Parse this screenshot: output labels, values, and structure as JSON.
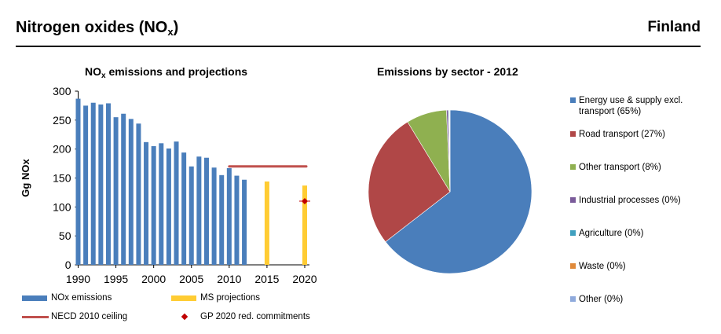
{
  "header": {
    "title": "Nitrogen oxides (NO",
    "title_sub": "x",
    "title_end": ")",
    "country": "Finland"
  },
  "chart_data": [
    {
      "type": "bar",
      "title": "NO",
      "title_sub": "x",
      "title_rest": " emissions and projections",
      "ylabel": "Gg NOx",
      "ylim": [
        0,
        300
      ],
      "yticks": [
        0,
        50,
        100,
        150,
        200,
        250,
        300
      ],
      "xlim": [
        1990,
        2020
      ],
      "xticks": [
        1990,
        1995,
        2000,
        2005,
        2010,
        2015,
        2020
      ],
      "series": [
        {
          "name": "NOx emissions",
          "color": "#4a7ebb",
          "x": [
            1990,
            1991,
            1992,
            1993,
            1994,
            1995,
            1996,
            1997,
            1998,
            1999,
            2000,
            2001,
            2002,
            2003,
            2004,
            2005,
            2006,
            2007,
            2008,
            2009,
            2010,
            2011,
            2012
          ],
          "values": [
            287,
            275,
            280,
            277,
            279,
            255,
            261,
            252,
            244,
            212,
            205,
            210,
            201,
            213,
            194,
            170,
            187,
            185,
            168,
            155,
            167,
            154,
            147
          ]
        },
        {
          "name": "MS projections",
          "color": "#ffcc33",
          "x": [
            2015,
            2020
          ],
          "values": [
            144,
            137
          ]
        }
      ],
      "ceiling": {
        "name": "NECD 2010 ceiling",
        "color": "#c0504d",
        "value": 170,
        "x_range": [
          2010,
          2020
        ]
      },
      "commitment": {
        "name": "GP 2020 red. commitments",
        "color": "#c00000",
        "x": 2020,
        "value": 110
      }
    },
    {
      "type": "pie",
      "title": "Emissions by sector - 2012",
      "slices": [
        {
          "label": "Energy use & supply excl. transport (65%)",
          "value": 64.5,
          "color": "#4a7ebb"
        },
        {
          "label": "Road transport (27%)",
          "value": 26.8,
          "color": "#b04747"
        },
        {
          "label": "Other transport (8%)",
          "value": 8.0,
          "color": "#8fb050"
        },
        {
          "label": "Industrial processes (0%)",
          "value": 0.35,
          "color": "#7a5b9a"
        },
        {
          "label": "Agriculture  (0%)",
          "value": 0.15,
          "color": "#40a0bf"
        },
        {
          "label": "Waste (0%)",
          "value": 0.1,
          "color": "#e08a3a"
        },
        {
          "label": "Other (0%)",
          "value": 0.1,
          "color": "#8faadc"
        }
      ]
    }
  ]
}
